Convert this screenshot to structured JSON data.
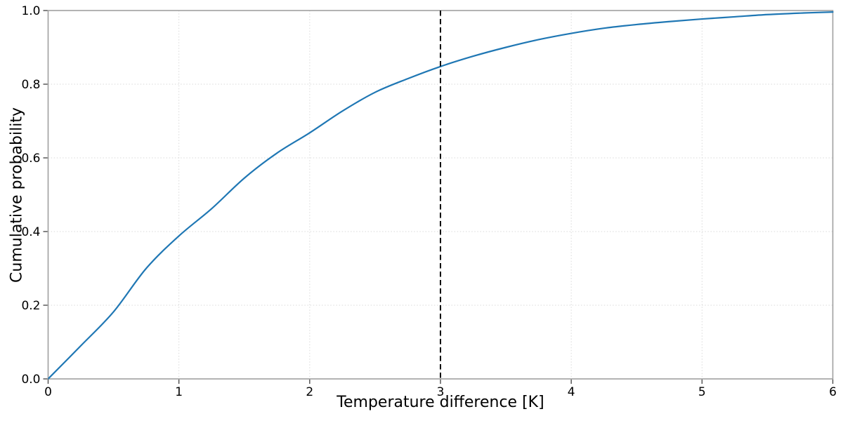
{
  "figure": {
    "background": "#ffffff"
  },
  "chart_data": {
    "type": "line",
    "title": "",
    "xlabel": "Temperature difference [K]",
    "ylabel": "Cumulative probability",
    "xlim": [
      0,
      6
    ],
    "ylim": [
      0.0,
      1.0
    ],
    "xticks": [
      0,
      1,
      2,
      3,
      4,
      5,
      6
    ],
    "xtick_labels": [
      "0",
      "1",
      "2",
      "3",
      "4",
      "5",
      "6"
    ],
    "ytick_values": [
      0.0,
      0.2,
      0.4,
      0.6,
      0.8,
      1.0
    ],
    "ytick_labels": [
      "0.0",
      "0.2",
      "0.4",
      "0.6",
      "0.8",
      "1.0"
    ],
    "grid": {
      "visible": true,
      "style": "dotted",
      "color": "#d9d9d9",
      "x_positions": [
        1,
        2,
        3,
        4,
        5
      ],
      "y_positions": [
        0.2,
        0.4,
        0.6,
        0.8
      ]
    },
    "legend": null,
    "series": [
      {
        "name": "cumulative-probability-curve",
        "color": "#1f77b4",
        "line_width": 2.2,
        "x": [
          0,
          0.25,
          0.5,
          0.75,
          1.0,
          1.25,
          1.5,
          1.75,
          2.0,
          2.25,
          2.5,
          2.75,
          3.0,
          3.25,
          3.5,
          3.75,
          4.0,
          4.25,
          4.5,
          4.75,
          5.0,
          5.25,
          5.5,
          5.75,
          6.0
        ],
        "y": [
          0.0,
          0.09,
          0.182,
          0.3,
          0.388,
          0.462,
          0.545,
          0.613,
          0.668,
          0.727,
          0.778,
          0.815,
          0.848,
          0.876,
          0.9,
          0.921,
          0.938,
          0.952,
          0.962,
          0.97,
          0.977,
          0.983,
          0.989,
          0.993,
          0.996
        ]
      }
    ],
    "annotations": [
      {
        "type": "vline",
        "x": 3,
        "style": "dashed",
        "color": "#000000"
      }
    ],
    "axis_style": {
      "spine_color": "#a0a0a0",
      "tick_color": "#4d4d4d",
      "tick_label_color": "#000000"
    }
  }
}
